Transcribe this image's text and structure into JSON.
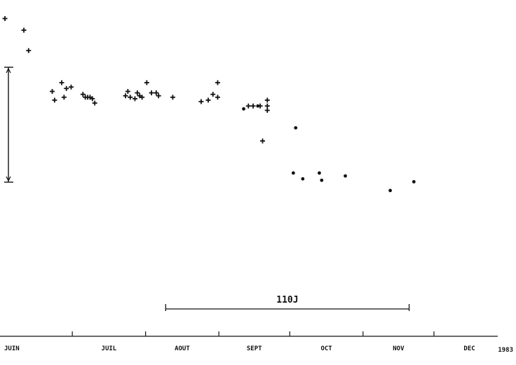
{
  "chart_data": {
    "type": "scatter",
    "title": "",
    "xlabel": "",
    "ylabel": "",
    "year": "1983",
    "x_unit": "day of month-sequence, x = 0 at start of JUIN",
    "categories": [
      "JUIN",
      "JUIL",
      "AOUT",
      "SEPT",
      "OCT",
      "NOV",
      "DEC"
    ],
    "month_tick_values": [
      0,
      30,
      61,
      92,
      122,
      153,
      183
    ],
    "xlim": [
      0,
      210
    ],
    "ylim": [
      0,
      100
    ],
    "grid": false,
    "legend": "none",
    "series": [
      {
        "marker": "plus",
        "points": [
          [
            1.5,
            97
          ],
          [
            9.5,
            93
          ],
          [
            11.5,
            86
          ],
          [
            21.5,
            72
          ],
          [
            22.5,
            69
          ],
          [
            25.5,
            75
          ],
          [
            26.5,
            70
          ],
          [
            27.5,
            73
          ],
          [
            29.5,
            73.5
          ],
          [
            34.5,
            71
          ],
          [
            35.5,
            70
          ],
          [
            36.5,
            70
          ],
          [
            37.5,
            70
          ],
          [
            38.5,
            69.5
          ],
          [
            39.5,
            68
          ],
          [
            52.5,
            70.5
          ],
          [
            53.5,
            72
          ],
          [
            54.5,
            70
          ],
          [
            56.5,
            69.5
          ],
          [
            57.5,
            71.5
          ],
          [
            58.5,
            70.5
          ],
          [
            59.5,
            70
          ],
          [
            61.5,
            75
          ],
          [
            63.5,
            71.5
          ],
          [
            65.5,
            71.5
          ],
          [
            66.5,
            70.5
          ],
          [
            72.5,
            70
          ],
          [
            84.5,
            68.5
          ],
          [
            87.5,
            69
          ],
          [
            89.5,
            71
          ],
          [
            91.5,
            70
          ],
          [
            91.5,
            75
          ],
          [
            104.5,
            67
          ],
          [
            106.5,
            67
          ],
          [
            109.5,
            67
          ],
          [
            112.5,
            69
          ],
          [
            112.5,
            67
          ],
          [
            112.5,
            65.5
          ],
          [
            110.5,
            55
          ]
        ]
      },
      {
        "marker": "dot",
        "points": [
          [
            102.5,
            66
          ],
          [
            108.5,
            67
          ],
          [
            124.5,
            59.5
          ],
          [
            123.5,
            44
          ],
          [
            127.5,
            42
          ],
          [
            134.5,
            44
          ],
          [
            135.5,
            41.5
          ],
          [
            145.5,
            43
          ],
          [
            164.5,
            38
          ],
          [
            174.5,
            41
          ]
        ]
      }
    ],
    "annotations": {
      "bracket_label": "110J",
      "bracket_x": [
        69.5,
        172.5
      ]
    }
  }
}
